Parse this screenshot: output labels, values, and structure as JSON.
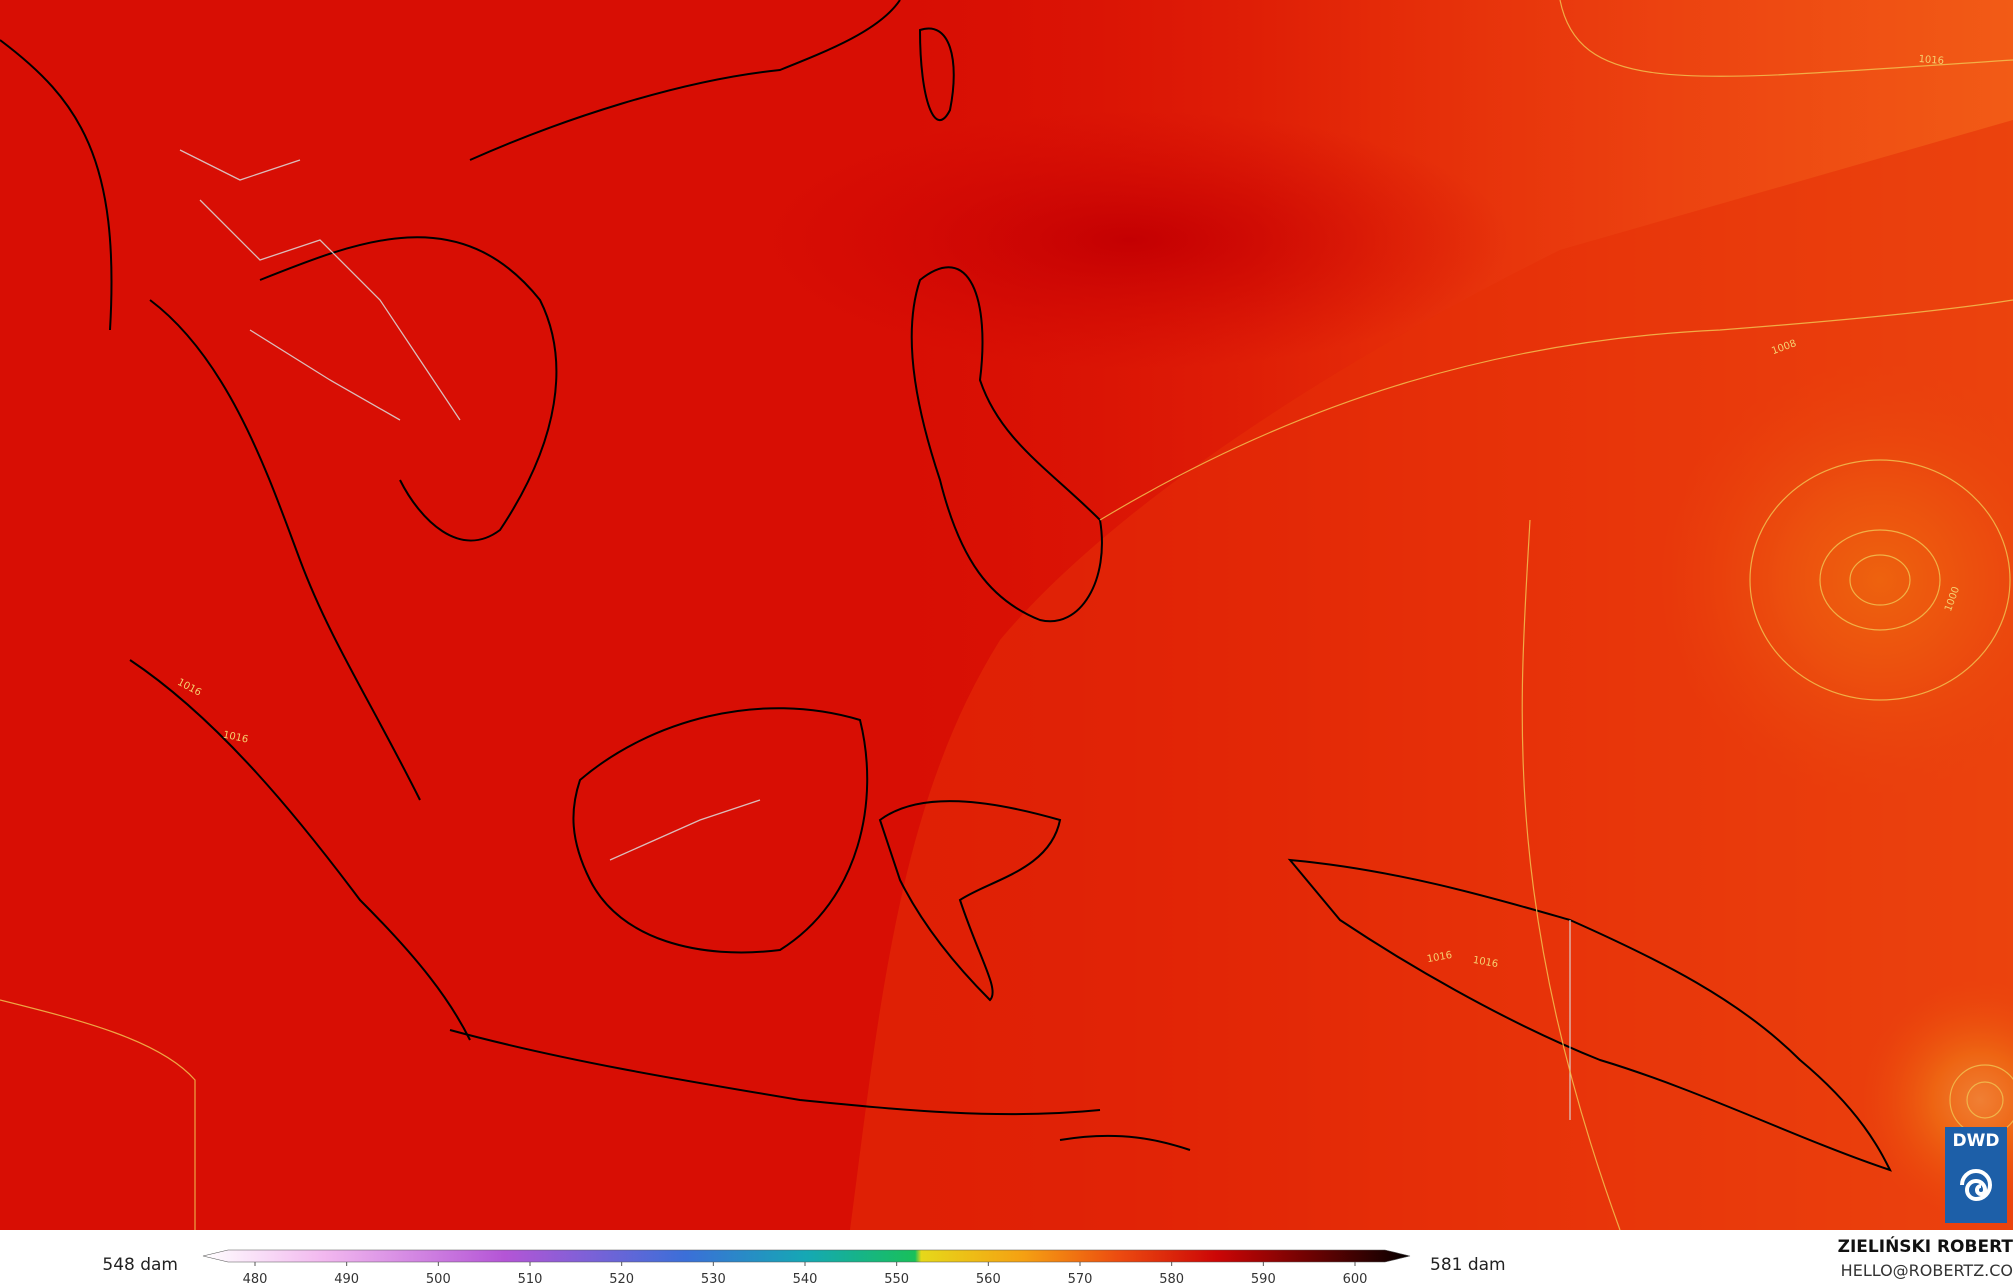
{
  "map": {
    "isobar_labels": [
      "1016",
      "1016",
      "1016",
      "1008",
      "1000",
      "1016",
      "1016"
    ],
    "logo": "DWD"
  },
  "legend": {
    "min_label": "548 dam",
    "max_label": "581 dam",
    "ticks": [
      480,
      490,
      500,
      510,
      520,
      530,
      540,
      550,
      560,
      570,
      580,
      590,
      600
    ]
  },
  "credit": {
    "author": "ZIELIŃSKI ROBERT",
    "contact": "HELLO@ROBERTZ.CO"
  }
}
